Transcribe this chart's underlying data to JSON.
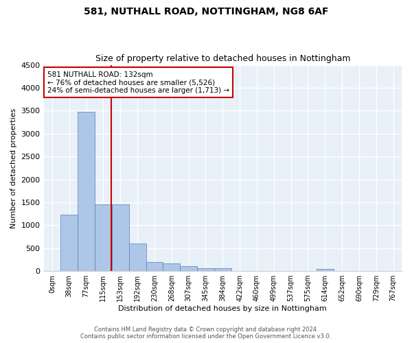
{
  "title1": "581, NUTHALL ROAD, NOTTINGHAM, NG8 6AF",
  "title2": "Size of property relative to detached houses in Nottingham",
  "xlabel": "Distribution of detached houses by size in Nottingham",
  "ylabel": "Number of detached properties",
  "bin_labels": [
    "0sqm",
    "38sqm",
    "77sqm",
    "115sqm",
    "153sqm",
    "192sqm",
    "230sqm",
    "268sqm",
    "307sqm",
    "345sqm",
    "384sqm",
    "422sqm",
    "460sqm",
    "499sqm",
    "537sqm",
    "575sqm",
    "614sqm",
    "652sqm",
    "690sqm",
    "729sqm",
    "767sqm"
  ],
  "bar_heights": [
    0,
    1230,
    3480,
    1460,
    1460,
    600,
    200,
    160,
    100,
    60,
    60,
    0,
    0,
    0,
    0,
    0,
    50,
    0,
    0,
    0,
    0
  ],
  "bar_color": "#aec6e8",
  "bar_edge_color": "#5580b0",
  "background_color": "#e8f0f8",
  "grid_color": "#ffffff",
  "ylim": [
    0,
    4500
  ],
  "yticks": [
    0,
    500,
    1000,
    1500,
    2000,
    2500,
    3000,
    3500,
    4000,
    4500
  ],
  "annotation_text": "581 NUTHALL ROAD: 132sqm\n← 76% of detached houses are smaller (5,526)\n24% of semi-detached houses are larger (1,713) →",
  "annotation_box_color": "#ffffff",
  "annotation_box_edge": "#cc0000",
  "footer1": "Contains HM Land Registry data © Crown copyright and database right 2024.",
  "footer2": "Contains public sector information licensed under the Open Government Licence v3.0."
}
